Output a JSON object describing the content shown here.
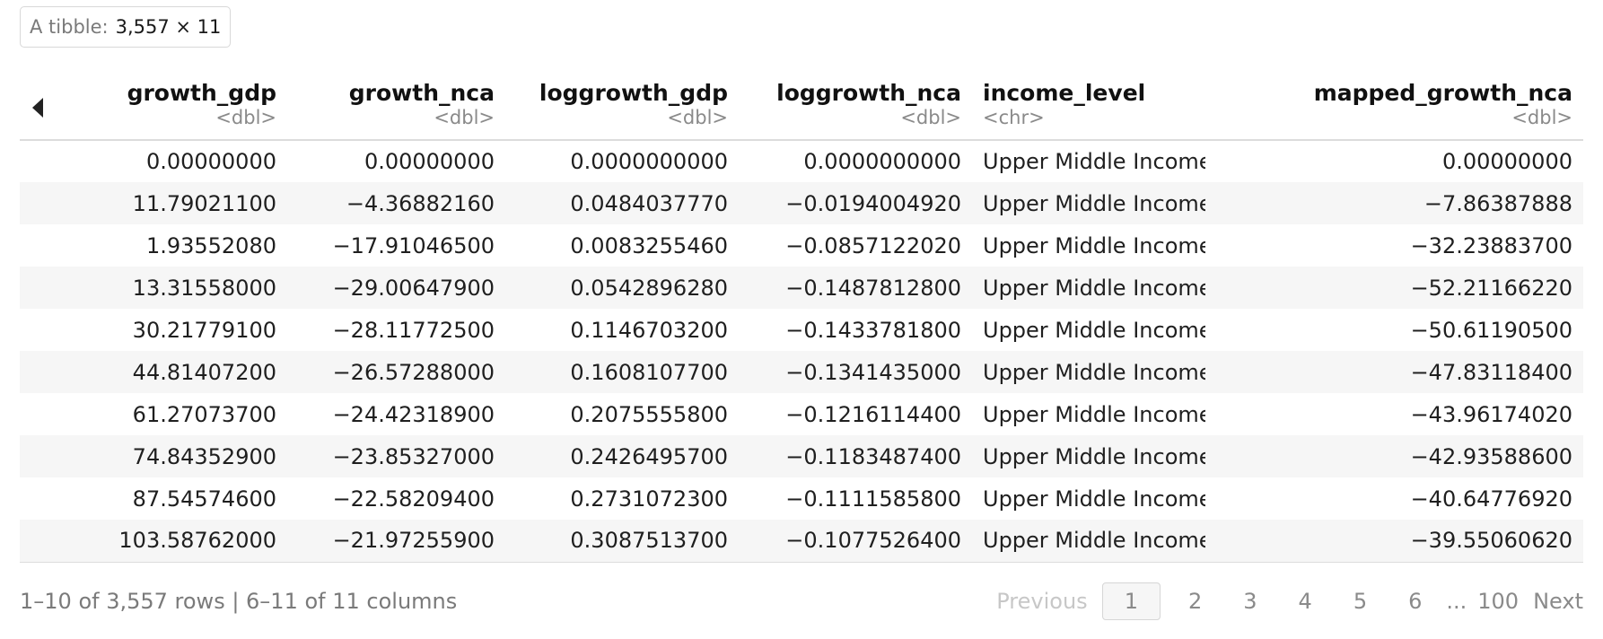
{
  "tibble": {
    "label": "A tibble:",
    "dims": "3,557 × 11"
  },
  "columns": [
    {
      "name": "growth_gdp",
      "type": "<dbl>"
    },
    {
      "name": "growth_nca",
      "type": "<dbl>"
    },
    {
      "name": "loggrowth_gdp",
      "type": "<dbl>"
    },
    {
      "name": "loggrowth_nca",
      "type": "<dbl>"
    },
    {
      "name": "income_level",
      "type": "<chr>"
    },
    {
      "name": "mapped_growth_nca",
      "type": "<dbl>"
    }
  ],
  "rows": [
    [
      "0.00000000",
      "0.00000000",
      "0.0000000000",
      "0.0000000000",
      "Upper Middle Income",
      "0.00000000"
    ],
    [
      "11.79021100",
      "−4.36882160",
      "0.0484037770",
      "−0.0194004920",
      "Upper Middle Income",
      "−7.86387888"
    ],
    [
      "1.93552080",
      "−17.91046500",
      "0.0083255460",
      "−0.0857122020",
      "Upper Middle Income",
      "−32.23883700"
    ],
    [
      "13.31558000",
      "−29.00647900",
      "0.0542896280",
      "−0.1487812800",
      "Upper Middle Income",
      "−52.21166220"
    ],
    [
      "30.21779100",
      "−28.11772500",
      "0.1146703200",
      "−0.1433781800",
      "Upper Middle Income",
      "−50.61190500"
    ],
    [
      "44.81407200",
      "−26.57288000",
      "0.1608107700",
      "−0.1341435000",
      "Upper Middle Income",
      "−47.83118400"
    ],
    [
      "61.27073700",
      "−24.42318900",
      "0.2075555800",
      "−0.1216114400",
      "Upper Middle Income",
      "−43.96174020"
    ],
    [
      "74.84352900",
      "−23.85327000",
      "0.2426495700",
      "−0.1183487400",
      "Upper Middle Income",
      "−42.93588600"
    ],
    [
      "87.54574600",
      "−22.58209400",
      "0.2731072300",
      "−0.1111585800",
      "Upper Middle Income",
      "−40.64776920"
    ],
    [
      "103.58762000",
      "−21.97255900",
      "0.3087513700",
      "−0.1077526400",
      "Upper Middle Income",
      "−39.55060620"
    ]
  ],
  "footer": {
    "info": "1–10 of 3,557 rows | 6–11 of 11 columns"
  },
  "pager": {
    "previous": "Previous",
    "pages": [
      "1",
      "2",
      "3",
      "4",
      "5",
      "6"
    ],
    "ellipsis": "...",
    "last_page": "100",
    "next": "Next"
  },
  "icons": {
    "prev_columns": "triangle-left-icon"
  },
  "colors": {
    "row_alt_bg": "#f6f6f6",
    "muted_text": "#7a7a7a",
    "border": "#dcdcdc"
  }
}
